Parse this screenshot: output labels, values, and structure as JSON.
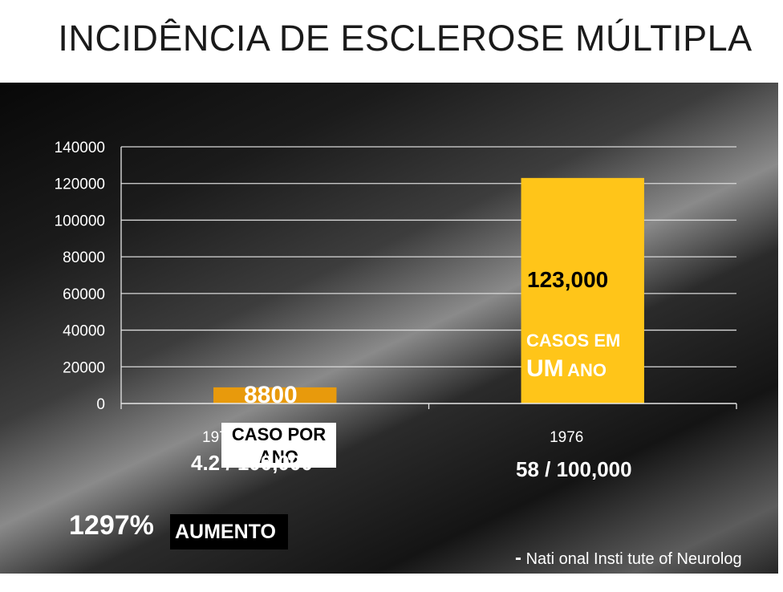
{
  "title": "INCIDÊNCIA DE ESCLEROSE MÚLTIPLA",
  "chart_data": {
    "type": "bar",
    "categories": [
      "1970 - 1975",
      "1976"
    ],
    "values": [
      8800,
      123000
    ],
    "colors": [
      "#e89a0c",
      "#ffc519"
    ],
    "ylim": [
      0,
      140000
    ],
    "yticks": [
      "0",
      "20000",
      "40000",
      "60000",
      "80000",
      "100000",
      "120000",
      "140000"
    ],
    "grid": true
  },
  "annotations": {
    "low_value": "8800",
    "low_label_line1": "CASO POR",
    "low_label_line2": "ANO",
    "high_value": "123,000",
    "high_label_line1": "CASOS EM",
    "high_label_um": "UM",
    "high_label_ano": "ANO",
    "rate_low": "4.2 / 100,000",
    "rate_high": "58 / 100,000",
    "increase_pct": "1297%",
    "increase_label": "AUMENTO",
    "source_dash": "-",
    "source": "Nati  onal Insti  tute of Neurolog"
  }
}
